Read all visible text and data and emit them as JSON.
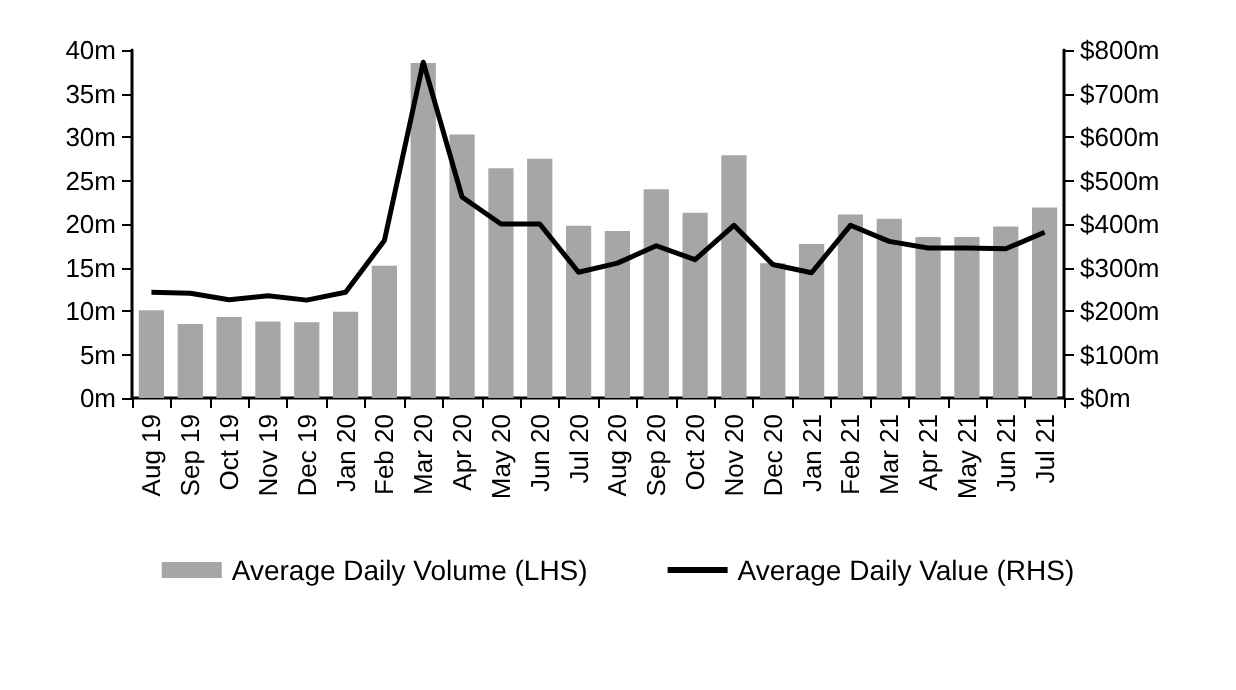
{
  "chart_data": {
    "type": "bar",
    "categories": [
      "Aug 19",
      "Sep 19",
      "Oct 19",
      "Nov 19",
      "Dec 19",
      "Jan 20",
      "Feb 20",
      "Mar 20",
      "Apr 20",
      "May 20",
      "Jun 20",
      "Jul 20",
      "Aug 20",
      "Sep 20",
      "Oct 20",
      "Nov 20",
      "Dec 20",
      "Jan 21",
      "Feb 21",
      "Mar 21",
      "Apr 21",
      "May 21",
      "Jun 21",
      "Jul 21"
    ],
    "series": [
      {
        "name": "Average Daily Volume (LHS)",
        "color": "#a6a6a6",
        "values": [
          10.1,
          8.5,
          9.3,
          8.8,
          8.7,
          9.9,
          15.2,
          38.5,
          30.3,
          26.4,
          27.5,
          19.8,
          19.2,
          24.0,
          21.3,
          27.9,
          15.5,
          17.7,
          21.1,
          20.6,
          18.5,
          18.5,
          19.7,
          21.9
        ]
      },
      {
        "name": "Average Daily Value (RHS)",
        "type": "line",
        "axis": "y2",
        "color": "#000000",
        "values": [
          243,
          241,
          226,
          235,
          225,
          243,
          362,
          772,
          462,
          400,
          400,
          289,
          310,
          350,
          318,
          397,
          307,
          288,
          397,
          360,
          345,
          345,
          343,
          381
        ]
      }
    ],
    "ylim": [
      0,
      40
    ],
    "yticks": [
      {
        "value": 0,
        "label": "0m"
      },
      {
        "value": 5,
        "label": "5m"
      },
      {
        "value": 10,
        "label": "10m"
      },
      {
        "value": 15,
        "label": "15m"
      },
      {
        "value": 20,
        "label": "20m"
      },
      {
        "value": 25,
        "label": "25m"
      },
      {
        "value": 30,
        "label": "30m"
      },
      {
        "value": 35,
        "label": "35m"
      },
      {
        "value": 40,
        "label": "40m"
      }
    ],
    "y2lim": [
      0,
      800
    ],
    "y2ticks": [
      {
        "value": 0,
        "label": "$0m"
      },
      {
        "value": 100,
        "label": "$100m"
      },
      {
        "value": 200,
        "label": "$200m"
      },
      {
        "value": 300,
        "label": "$300m"
      },
      {
        "value": 400,
        "label": "$400m"
      },
      {
        "value": 500,
        "label": "$500m"
      },
      {
        "value": 600,
        "label": "$600m"
      },
      {
        "value": 700,
        "label": "$700m"
      },
      {
        "value": 800,
        "label": "$800m"
      }
    ],
    "grid": false,
    "legend": "bottom",
    "marker": "none"
  }
}
